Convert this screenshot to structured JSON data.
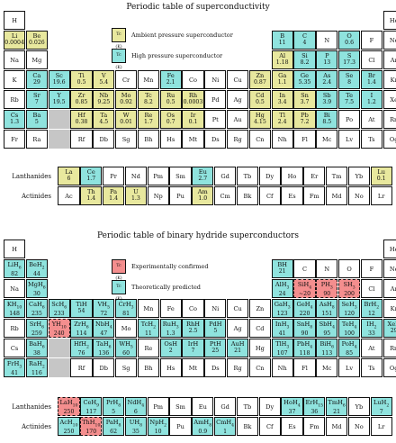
{
  "panel1": {
    "title": "Periodic table of superconductivity",
    "legend": [
      {
        "box_label": "Tc (K)",
        "text": "Ambient pressure superconductor",
        "kind": "amb"
      },
      {
        "box_label": "Tc (K)",
        "text": "High pressure superconductor",
        "kind": "high"
      }
    ],
    "lanthanides_label": "Lanthanides",
    "actinides_label": "Actinides",
    "main": [
      [
        [
          "H",
          "",
          ""
        ],
        null,
        null,
        null,
        null,
        null,
        null,
        null,
        null,
        null,
        null,
        null,
        null,
        null,
        null,
        null,
        null,
        [
          "He",
          "",
          ""
        ]
      ],
      [
        [
          "Li",
          "0.0004",
          "amb"
        ],
        [
          "Be",
          "0.026",
          "amb"
        ],
        null,
        null,
        null,
        null,
        null,
        null,
        null,
        null,
        null,
        null,
        [
          "B",
          "11",
          "high"
        ],
        [
          "C",
          "4",
          "high"
        ],
        [
          "N",
          "",
          ""
        ],
        [
          "O",
          "0.6",
          "high"
        ],
        [
          "F",
          "",
          ""
        ],
        [
          "Ne",
          "",
          ""
        ]
      ],
      [
        [
          "Na",
          "",
          ""
        ],
        [
          "Mg",
          "",
          ""
        ],
        null,
        null,
        null,
        null,
        null,
        null,
        null,
        null,
        null,
        null,
        [
          "Al",
          "1.18",
          "amb"
        ],
        [
          "Si",
          "8.2",
          "high"
        ],
        [
          "P",
          "13",
          "high"
        ],
        [
          "S",
          "17.3",
          "high"
        ],
        [
          "Cl",
          "",
          ""
        ],
        [
          "Ar",
          "",
          ""
        ]
      ],
      [
        [
          "K",
          "",
          ""
        ],
        [
          "Ca",
          "29",
          "high"
        ],
        [
          "Sc",
          "19.6",
          "high"
        ],
        [
          "Ti",
          "0.5",
          "amb"
        ],
        [
          "V",
          "5.4",
          "amb"
        ],
        [
          "Cr",
          "",
          ""
        ],
        [
          "Mn",
          "",
          ""
        ],
        [
          "Fe",
          "2.1",
          "high"
        ],
        [
          "Co",
          "",
          ""
        ],
        [
          "Ni",
          "",
          ""
        ],
        [
          "Cu",
          "",
          ""
        ],
        [
          "Zn",
          "0.87",
          "amb"
        ],
        [
          "Ga",
          "1.1",
          "amb"
        ],
        [
          "Ge",
          "5.35",
          "high"
        ],
        [
          "As",
          "2.4",
          "high"
        ],
        [
          "Se",
          "8",
          "high"
        ],
        [
          "Br",
          "1.4",
          "high"
        ],
        [
          "Kr",
          "",
          ""
        ]
      ],
      [
        [
          "Rb",
          "",
          ""
        ],
        [
          "Sr",
          "7",
          "high"
        ],
        [
          "Y",
          "19.5",
          "high"
        ],
        [
          "Zr",
          "0.85",
          "amb"
        ],
        [
          "Nb",
          "9.25",
          "amb"
        ],
        [
          "Mo",
          "0.92",
          "amb"
        ],
        [
          "Tc",
          "8.2",
          "amb"
        ],
        [
          "Ru",
          "0.5",
          "amb"
        ],
        [
          "Rh",
          "0.0003",
          "amb"
        ],
        [
          "Pd",
          "",
          ""
        ],
        [
          "Ag",
          "",
          ""
        ],
        [
          "Cd",
          "0.5",
          "amb"
        ],
        [
          "In",
          "3.4",
          "amb"
        ],
        [
          "Sn",
          "3.7",
          "amb"
        ],
        [
          "Sb",
          "3.9",
          "high"
        ],
        [
          "Te",
          "7.5",
          "high"
        ],
        [
          "I",
          "1.2",
          "high"
        ],
        [
          "Xe",
          "",
          ""
        ]
      ],
      [
        [
          "Cs",
          "1.3",
          "high"
        ],
        [
          "Ba",
          "5",
          "high"
        ],
        "grey",
        [
          "Hf",
          "0.38",
          "amb"
        ],
        [
          "Ta",
          "4.5",
          "amb"
        ],
        [
          "W",
          "0.01",
          "amb"
        ],
        [
          "Re",
          "1.7",
          "amb"
        ],
        [
          "Os",
          "0.7",
          "amb"
        ],
        [
          "Ir",
          "0.1",
          "amb"
        ],
        [
          "Pt",
          "",
          ""
        ],
        [
          "Au",
          "",
          ""
        ],
        [
          "Hg",
          "4.15",
          "amb"
        ],
        [
          "Tl",
          "2.4",
          "amb"
        ],
        [
          "Pb",
          "7.2",
          "amb"
        ],
        [
          "Bi",
          "8.5",
          "high"
        ],
        [
          "Po",
          "",
          ""
        ],
        [
          "At",
          "",
          ""
        ],
        [
          "Rn",
          "",
          ""
        ]
      ],
      [
        [
          "Fr",
          "",
          ""
        ],
        [
          "Ra",
          "",
          ""
        ],
        "grey",
        [
          "Rf",
          "",
          ""
        ],
        [
          "Db",
          "",
          ""
        ],
        [
          "Sg",
          "",
          ""
        ],
        [
          "Bh",
          "",
          ""
        ],
        [
          "Hs",
          "",
          ""
        ],
        [
          "Mt",
          "",
          ""
        ],
        [
          "Ds",
          "",
          ""
        ],
        [
          "Rg",
          "",
          ""
        ],
        [
          "Cn",
          "",
          ""
        ],
        [
          "Nh",
          "",
          ""
        ],
        [
          "Fl",
          "",
          ""
        ],
        [
          "Mc",
          "",
          ""
        ],
        [
          "Lv",
          "",
          ""
        ],
        [
          "Ts",
          "",
          ""
        ],
        [
          "Og",
          "",
          ""
        ]
      ]
    ],
    "lanthanides": [
      [
        "La",
        "6",
        "amb"
      ],
      [
        "Ce",
        "1.7",
        "high"
      ],
      [
        "Pr",
        "",
        ""
      ],
      [
        "Nd",
        "",
        ""
      ],
      [
        "Pm",
        "",
        ""
      ],
      [
        "Sm",
        "",
        ""
      ],
      [
        "Eu",
        "2.7",
        "high"
      ],
      [
        "Gd",
        "",
        ""
      ],
      [
        "Tb",
        "",
        ""
      ],
      [
        "Dy",
        "",
        ""
      ],
      [
        "Ho",
        "",
        ""
      ],
      [
        "Er",
        "",
        ""
      ],
      [
        "Tm",
        "",
        ""
      ],
      [
        "Yb",
        "",
        ""
      ],
      [
        "Lu",
        "0.1",
        "amb"
      ]
    ],
    "actinides": [
      [
        "Ac",
        "",
        ""
      ],
      [
        "Th",
        "1.4",
        "amb"
      ],
      [
        "Pa",
        "1.4",
        "amb"
      ],
      [
        "U",
        "1.3",
        "amb"
      ],
      [
        "Np",
        "",
        ""
      ],
      [
        "Pu",
        "",
        ""
      ],
      [
        "Am",
        "1.0",
        "amb"
      ],
      [
        "Cm",
        "",
        ""
      ],
      [
        "Bk",
        "",
        ""
      ],
      [
        "Cf",
        "",
        ""
      ],
      [
        "Es",
        "",
        ""
      ],
      [
        "Fm",
        "",
        ""
      ],
      [
        "Md",
        "",
        ""
      ],
      [
        "No",
        "",
        ""
      ],
      [
        "Lr",
        "",
        ""
      ]
    ]
  },
  "panel2": {
    "title": "Periodic table of binary hydride superconductors",
    "legend": [
      {
        "box_label": "Tc (K)",
        "text": "Experimentally confirmed",
        "kind": "exp"
      },
      {
        "box_label": "Tc (K)",
        "text": "Theoretically predicted",
        "kind": "thr"
      }
    ],
    "lanthanides_label": "Lanthanides",
    "actinides_label": "Actinides",
    "main": [
      [
        [
          "H",
          "",
          ""
        ],
        null,
        null,
        null,
        null,
        null,
        null,
        null,
        null,
        null,
        null,
        null,
        null,
        null,
        null,
        null,
        null,
        [
          "He",
          "",
          ""
        ]
      ],
      [
        [
          "LiH6",
          "82",
          "thr"
        ],
        [
          "BeH2",
          "44",
          "thr"
        ],
        null,
        null,
        null,
        null,
        null,
        null,
        null,
        null,
        null,
        null,
        [
          "BH",
          "21",
          "thr"
        ],
        [
          "C",
          "",
          ""
        ],
        [
          "N",
          "",
          ""
        ],
        [
          "O",
          "",
          ""
        ],
        [
          "F",
          "",
          ""
        ],
        [
          "Ne",
          "",
          ""
        ]
      ],
      [
        [
          "Na",
          "",
          ""
        ],
        [
          "MgH6",
          "30",
          "thr"
        ],
        null,
        null,
        null,
        null,
        null,
        null,
        null,
        null,
        null,
        null,
        [
          "AlH3",
          "24",
          "thr"
        ],
        [
          "SiH4",
          "~20",
          "exp"
        ],
        [
          "PH3",
          "90",
          "exp"
        ],
        [
          "SH3",
          "200",
          "exp"
        ],
        [
          "Cl",
          "",
          ""
        ],
        [
          "Ar",
          "",
          ""
        ]
      ],
      [
        [
          "KH10",
          "148",
          "thr"
        ],
        [
          "CaH6",
          "235",
          "thr"
        ],
        [
          "ScH6",
          "233",
          "thr"
        ],
        [
          "TiH",
          "54",
          "thr"
        ],
        [
          "VH5",
          "72",
          "thr"
        ],
        [
          "CrH3",
          "81",
          "thr"
        ],
        [
          "Mn",
          "",
          ""
        ],
        [
          "Fe",
          "",
          ""
        ],
        [
          "Co",
          "",
          ""
        ],
        [
          "Ni",
          "",
          ""
        ],
        [
          "Cu",
          "",
          ""
        ],
        [
          "Zn",
          "",
          ""
        ],
        [
          "GaH3",
          "123",
          "thr"
        ],
        [
          "GeH4",
          "220",
          "thr"
        ],
        [
          "AsH8",
          "151",
          "thr"
        ],
        [
          "SeH3",
          "120",
          "thr"
        ],
        [
          "BrH2",
          "12",
          "thr"
        ],
        [
          "Kr",
          "",
          ""
        ]
      ],
      [
        [
          "Rb",
          "",
          ""
        ],
        [
          "SrH6",
          "259",
          "thr"
        ],
        [
          "YH10",
          "240",
          "exp"
        ],
        [
          "ZrH6",
          "114",
          "thr"
        ],
        [
          "NbH4",
          "47",
          "thr"
        ],
        [
          "Mo",
          "",
          ""
        ],
        [
          "TcH2",
          "11",
          "thr"
        ],
        [
          "RuH3",
          "1.3",
          "thr"
        ],
        [
          "RhH",
          "2.5",
          "thr"
        ],
        [
          "PdH",
          "5",
          "thr"
        ],
        [
          "Ag",
          "",
          ""
        ],
        [
          "Cd",
          "",
          ""
        ],
        [
          "InH3",
          "41",
          "thr"
        ],
        [
          "SnH8",
          "90",
          "thr"
        ],
        [
          "SbH4",
          "95",
          "thr"
        ],
        [
          "TeH4",
          "100",
          "thr"
        ],
        [
          "IH2",
          "33",
          "thr"
        ],
        [
          "XeH",
          "29",
          "thr"
        ]
      ],
      [
        [
          "Cs",
          "",
          ""
        ],
        [
          "BaH6",
          "38",
          "thr"
        ],
        "grey",
        [
          "HfH2",
          "76",
          "thr"
        ],
        [
          "TaH6",
          "136",
          "thr"
        ],
        [
          "WH5",
          "60",
          "thr"
        ],
        [
          "Re",
          "",
          ""
        ],
        [
          "OsH",
          "2",
          "thr"
        ],
        [
          "IrH",
          "7",
          "thr"
        ],
        [
          "PtH",
          "25",
          "thr"
        ],
        [
          "AuH",
          "21",
          "thr"
        ],
        [
          "Hg",
          "",
          ""
        ],
        [
          "TlH3",
          "107",
          "thr"
        ],
        [
          "PbH4",
          "118",
          "thr"
        ],
        [
          "BiH6",
          "113",
          "thr"
        ],
        [
          "PoH4",
          "85",
          "thr"
        ],
        [
          "At",
          "",
          ""
        ],
        [
          "Rn",
          "",
          ""
        ]
      ],
      [
        [
          "FrH3",
          "41",
          "thr"
        ],
        [
          "RaH2",
          "116",
          "thr"
        ],
        "grey",
        [
          "Rf",
          "",
          ""
        ],
        [
          "Db",
          "",
          ""
        ],
        [
          "Sg",
          "",
          ""
        ],
        [
          "Bh",
          "",
          ""
        ],
        [
          "Hs",
          "",
          ""
        ],
        [
          "Mt",
          "",
          ""
        ],
        [
          "Ds",
          "",
          ""
        ],
        [
          "Rg",
          "",
          ""
        ],
        [
          "Cn",
          "",
          ""
        ],
        [
          "Nh",
          "",
          ""
        ],
        [
          "Fl",
          "",
          ""
        ],
        [
          "Mc",
          "",
          ""
        ],
        [
          "Lv",
          "",
          ""
        ],
        [
          "Ts",
          "",
          ""
        ],
        [
          "Og",
          "",
          ""
        ]
      ]
    ],
    "lanthanides": [
      [
        "LaH10",
        "250",
        "exp"
      ],
      [
        "CeH9",
        "117",
        "thr"
      ],
      [
        "PrH8",
        "5",
        "thr"
      ],
      [
        "NdH4",
        "6",
        "thr"
      ],
      [
        "Pm",
        "",
        ""
      ],
      [
        "Sm",
        "",
        ""
      ],
      [
        "Eu",
        "",
        ""
      ],
      [
        "Gd",
        "",
        ""
      ],
      [
        "Tb",
        "",
        ""
      ],
      [
        "Dy",
        "",
        ""
      ],
      [
        "HoH4",
        "37",
        "thr"
      ],
      [
        "ErH15",
        "36",
        "thr"
      ],
      [
        "TmH6",
        "21",
        "thr"
      ],
      [
        "Yb",
        "",
        ""
      ],
      [
        "LuH2",
        "7",
        "thr"
      ]
    ],
    "actinides": [
      [
        "AcH10",
        "250",
        "thr"
      ],
      [
        "ThH10",
        "170",
        "exp"
      ],
      [
        "PaH8",
        "62",
        "thr"
      ],
      [
        "UH8",
        "35",
        "thr"
      ],
      [
        "NpH2",
        "10",
        "thr"
      ],
      [
        "Pu",
        "",
        ""
      ],
      [
        "AmH8",
        "0.9",
        "thr"
      ],
      [
        "CmH4",
        "1",
        "thr"
      ],
      [
        "Bk",
        "",
        ""
      ],
      [
        "Cf",
        "",
        ""
      ],
      [
        "Es",
        "",
        ""
      ],
      [
        "Fm",
        "",
        ""
      ],
      [
        "Md",
        "",
        ""
      ],
      [
        "No",
        "",
        ""
      ],
      [
        "Lr",
        "",
        ""
      ]
    ]
  }
}
